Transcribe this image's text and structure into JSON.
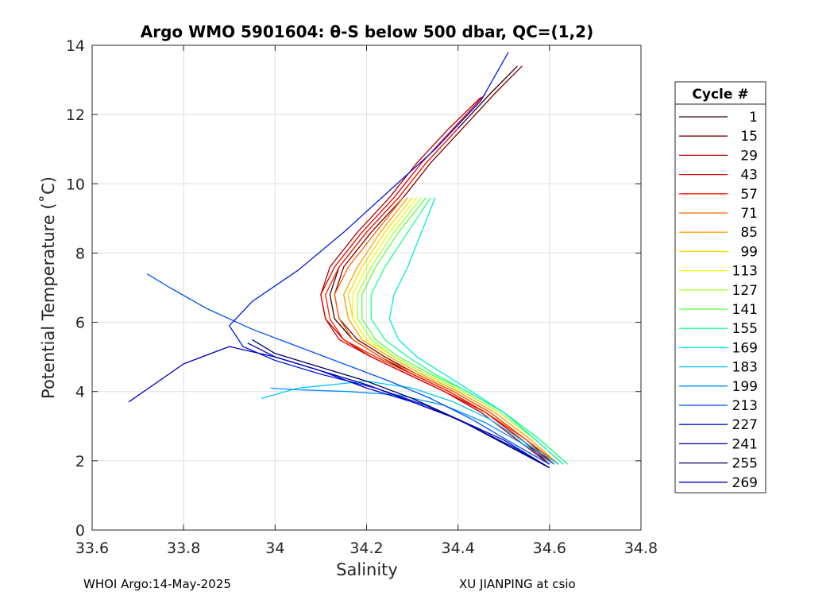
{
  "chart_data": {
    "type": "line",
    "title": "Argo WMO 5901604: θ-S below 500 dbar,  QC=(1,2)",
    "xlabel": "Salinity",
    "ylabel": "Potential Temperature (˚C)",
    "xlim": [
      33.6,
      34.8
    ],
    "ylim": [
      0,
      14
    ],
    "xticks": [
      "33.6",
      "33.8",
      "34",
      "34.2",
      "34.4",
      "34.6",
      "34.8"
    ],
    "yticks": [
      "0",
      "2",
      "4",
      "6",
      "8",
      "10",
      "12",
      "14"
    ],
    "grid": true,
    "legend": {
      "title": "Cycle #",
      "placement": "right, outside plot",
      "entries": [
        {
          "label": "1",
          "color": "#3a0000"
        },
        {
          "label": "15",
          "color": "#7a0000"
        },
        {
          "label": "29",
          "color": "#b00000"
        },
        {
          "label": "43",
          "color": "#e00000"
        },
        {
          "label": "57",
          "color": "#ff2000"
        },
        {
          "label": "71",
          "color": "#ff6400"
        },
        {
          "label": "85",
          "color": "#ffa000"
        },
        {
          "label": "99",
          "color": "#ffd800"
        },
        {
          "label": "113",
          "color": "#e6ff10"
        },
        {
          "label": "127",
          "color": "#a8ff30"
        },
        {
          "label": "141",
          "color": "#58ff40"
        },
        {
          "label": "155",
          "color": "#20ff90"
        },
        {
          "label": "169",
          "color": "#00f0d0"
        },
        {
          "label": "183",
          "color": "#00c8ff"
        },
        {
          "label": "199",
          "color": "#0090ff"
        },
        {
          "label": "213",
          "color": "#0050ff"
        },
        {
          "label": "227",
          "color": "#0018e0"
        },
        {
          "label": "241",
          "color": "#0000a8"
        },
        {
          "label": "255",
          "color": "#000060"
        },
        {
          "label": "269",
          "color": "#0000c8"
        }
      ]
    },
    "series": [
      {
        "name": "1",
        "color": "#3a0000",
        "points": [
          [
            34.6,
            1.9
          ],
          [
            34.54,
            2.6
          ],
          [
            34.46,
            3.4
          ],
          [
            34.38,
            4.0
          ],
          [
            34.3,
            4.5
          ],
          [
            34.23,
            5.0
          ],
          [
            34.17,
            5.5
          ],
          [
            34.13,
            6.1
          ],
          [
            34.12,
            6.8
          ],
          [
            34.14,
            7.6
          ],
          [
            34.2,
            8.6
          ],
          [
            34.27,
            9.6
          ],
          [
            34.33,
            10.6
          ],
          [
            34.4,
            11.6
          ],
          [
            34.47,
            12.6
          ],
          [
            34.53,
            13.4
          ]
        ]
      },
      {
        "name": "15",
        "color": "#7a0000",
        "points": [
          [
            34.61,
            1.9
          ],
          [
            34.55,
            2.6
          ],
          [
            34.47,
            3.4
          ],
          [
            34.39,
            4.0
          ],
          [
            34.31,
            4.5
          ],
          [
            34.24,
            5.0
          ],
          [
            34.18,
            5.5
          ],
          [
            34.14,
            6.1
          ],
          [
            34.13,
            6.8
          ],
          [
            34.15,
            7.6
          ],
          [
            34.21,
            8.6
          ],
          [
            34.28,
            9.6
          ],
          [
            34.34,
            10.6
          ],
          [
            34.41,
            11.6
          ],
          [
            34.48,
            12.6
          ],
          [
            34.54,
            13.4
          ]
        ]
      },
      {
        "name": "29",
        "color": "#b00000",
        "points": [
          [
            34.6,
            1.9
          ],
          [
            34.53,
            2.6
          ],
          [
            34.45,
            3.4
          ],
          [
            34.37,
            4.0
          ],
          [
            34.29,
            4.5
          ],
          [
            34.21,
            5.0
          ],
          [
            34.15,
            5.5
          ],
          [
            34.11,
            6.1
          ],
          [
            34.1,
            6.8
          ],
          [
            34.12,
            7.6
          ],
          [
            34.18,
            8.6
          ],
          [
            34.25,
            9.6
          ],
          [
            34.31,
            10.6
          ],
          [
            34.38,
            11.6
          ],
          [
            34.45,
            12.5
          ]
        ]
      },
      {
        "name": "43",
        "color": "#e00000",
        "points": [
          [
            34.61,
            1.9
          ],
          [
            34.54,
            2.6
          ],
          [
            34.46,
            3.4
          ],
          [
            34.37,
            4.0
          ],
          [
            34.29,
            4.5
          ],
          [
            34.21,
            5.0
          ],
          [
            34.14,
            5.5
          ],
          [
            34.11,
            6.1
          ],
          [
            34.1,
            6.8
          ],
          [
            34.13,
            7.6
          ],
          [
            34.19,
            8.6
          ],
          [
            34.26,
            9.6
          ],
          [
            34.32,
            10.6
          ],
          [
            34.39,
            11.6
          ],
          [
            34.46,
            12.6
          ]
        ]
      },
      {
        "name": "57",
        "color": "#ff2000",
        "points": [
          [
            34.62,
            1.9
          ],
          [
            34.55,
            2.6
          ],
          [
            34.46,
            3.4
          ],
          [
            34.38,
            4.0
          ],
          [
            34.3,
            4.5
          ],
          [
            34.22,
            5.0
          ],
          [
            34.15,
            5.5
          ],
          [
            34.12,
            6.1
          ],
          [
            34.11,
            6.8
          ],
          [
            34.14,
            7.6
          ],
          [
            34.2,
            8.6
          ],
          [
            34.27,
            9.6
          ],
          [
            34.33,
            10.6
          ],
          [
            34.4,
            11.6
          ]
        ]
      },
      {
        "name": "71",
        "color": "#ff6400",
        "points": [
          [
            34.62,
            1.9
          ],
          [
            34.55,
            2.6
          ],
          [
            34.47,
            3.4
          ],
          [
            34.39,
            4.0
          ],
          [
            34.31,
            4.5
          ],
          [
            34.23,
            5.0
          ],
          [
            34.17,
            5.5
          ],
          [
            34.14,
            6.1
          ],
          [
            34.13,
            6.8
          ],
          [
            34.16,
            7.6
          ],
          [
            34.22,
            8.6
          ],
          [
            34.28,
            9.6
          ]
        ]
      },
      {
        "name": "85",
        "color": "#ffa000",
        "points": [
          [
            34.62,
            1.9
          ],
          [
            34.56,
            2.6
          ],
          [
            34.48,
            3.4
          ],
          [
            34.4,
            4.0
          ],
          [
            34.32,
            4.5
          ],
          [
            34.25,
            5.0
          ],
          [
            34.19,
            5.5
          ],
          [
            34.16,
            6.1
          ],
          [
            34.15,
            6.8
          ],
          [
            34.18,
            7.6
          ],
          [
            34.23,
            8.6
          ],
          [
            34.29,
            9.6
          ]
        ]
      },
      {
        "name": "99",
        "color": "#ffd800",
        "points": [
          [
            34.63,
            1.9
          ],
          [
            34.57,
            2.6
          ],
          [
            34.49,
            3.4
          ],
          [
            34.41,
            4.0
          ],
          [
            34.33,
            4.5
          ],
          [
            34.26,
            5.0
          ],
          [
            34.2,
            5.5
          ],
          [
            34.17,
            6.1
          ],
          [
            34.16,
            6.8
          ],
          [
            34.19,
            7.6
          ],
          [
            34.24,
            8.6
          ],
          [
            34.3,
            9.6
          ]
        ]
      },
      {
        "name": "113",
        "color": "#e6ff10",
        "points": [
          [
            34.63,
            1.9
          ],
          [
            34.57,
            2.6
          ],
          [
            34.49,
            3.4
          ],
          [
            34.41,
            4.0
          ],
          [
            34.33,
            4.5
          ],
          [
            34.26,
            5.0
          ],
          [
            34.2,
            5.5
          ],
          [
            34.17,
            6.1
          ],
          [
            34.17,
            6.8
          ],
          [
            34.2,
            7.6
          ],
          [
            34.25,
            8.6
          ],
          [
            34.31,
            9.6
          ]
        ]
      },
      {
        "name": "127",
        "color": "#a8ff30",
        "points": [
          [
            34.63,
            1.9
          ],
          [
            34.57,
            2.6
          ],
          [
            34.49,
            3.4
          ],
          [
            34.41,
            4.0
          ],
          [
            34.33,
            4.5
          ],
          [
            34.26,
            5.0
          ],
          [
            34.21,
            5.5
          ],
          [
            34.18,
            6.1
          ],
          [
            34.18,
            6.8
          ],
          [
            34.21,
            7.6
          ],
          [
            34.26,
            8.6
          ],
          [
            34.32,
            9.6
          ]
        ]
      },
      {
        "name": "141",
        "color": "#58ff40",
        "points": [
          [
            34.64,
            1.9
          ],
          [
            34.58,
            2.6
          ],
          [
            34.5,
            3.4
          ],
          [
            34.42,
            4.0
          ],
          [
            34.34,
            4.5
          ],
          [
            34.27,
            5.0
          ],
          [
            34.22,
            5.5
          ],
          [
            34.19,
            6.1
          ],
          [
            34.19,
            6.8
          ],
          [
            34.22,
            7.6
          ],
          [
            34.27,
            8.6
          ],
          [
            34.33,
            9.6
          ]
        ]
      },
      {
        "name": "155",
        "color": "#20ff90",
        "points": [
          [
            34.64,
            1.9
          ],
          [
            34.58,
            2.6
          ],
          [
            34.5,
            3.4
          ],
          [
            34.42,
            4.0
          ],
          [
            34.35,
            4.5
          ],
          [
            34.29,
            5.0
          ],
          [
            34.24,
            5.5
          ],
          [
            34.21,
            6.1
          ],
          [
            34.21,
            6.8
          ],
          [
            34.24,
            7.6
          ],
          [
            34.29,
            8.6
          ],
          [
            34.34,
            9.6
          ]
        ]
      },
      {
        "name": "169",
        "color": "#00f0d0",
        "points": [
          [
            34.63,
            1.9
          ],
          [
            34.57,
            2.6
          ],
          [
            34.5,
            3.4
          ],
          [
            34.43,
            4.0
          ],
          [
            34.37,
            4.5
          ],
          [
            34.31,
            5.0
          ],
          [
            34.27,
            5.5
          ],
          [
            34.25,
            6.1
          ],
          [
            34.26,
            6.8
          ],
          [
            34.29,
            7.6
          ],
          [
            34.32,
            8.6
          ],
          [
            34.35,
            9.6
          ]
        ]
      },
      {
        "name": "183",
        "color": "#00c8ff",
        "points": [
          [
            34.62,
            1.9
          ],
          [
            34.55,
            2.5
          ],
          [
            34.47,
            3.2
          ],
          [
            34.39,
            3.7
          ],
          [
            34.3,
            4.1
          ],
          [
            34.2,
            4.3
          ],
          [
            34.05,
            4.1
          ],
          [
            33.97,
            3.8
          ]
        ]
      },
      {
        "name": "199",
        "color": "#0090ff",
        "points": [
          [
            34.61,
            1.9
          ],
          [
            34.54,
            2.5
          ],
          [
            34.46,
            3.1
          ],
          [
            34.37,
            3.6
          ],
          [
            34.27,
            3.9
          ],
          [
            34.16,
            4.0
          ],
          [
            34.05,
            4.05
          ],
          [
            33.99,
            4.1
          ]
        ]
      },
      {
        "name": "213",
        "color": "#0050ff",
        "points": [
          [
            34.6,
            1.9
          ],
          [
            34.52,
            2.5
          ],
          [
            34.43,
            3.2
          ],
          [
            34.34,
            3.8
          ],
          [
            34.25,
            4.3
          ],
          [
            34.15,
            4.8
          ],
          [
            34.05,
            5.3
          ],
          [
            33.95,
            5.8
          ],
          [
            33.85,
            6.4
          ],
          [
            33.77,
            7.0
          ],
          [
            33.72,
            7.4
          ]
        ]
      },
      {
        "name": "227",
        "color": "#0018e0",
        "points": [
          [
            34.6,
            1.8
          ],
          [
            34.52,
            2.4
          ],
          [
            34.43,
            3.0
          ],
          [
            34.33,
            3.6
          ],
          [
            34.22,
            4.1
          ],
          [
            34.1,
            4.5
          ],
          [
            34.0,
            4.9
          ],
          [
            33.93,
            5.3
          ],
          [
            33.9,
            5.9
          ],
          [
            33.95,
            6.6
          ],
          [
            34.05,
            7.5
          ],
          [
            34.15,
            8.6
          ],
          [
            34.25,
            9.8
          ],
          [
            34.35,
            11.0
          ],
          [
            34.45,
            12.4
          ],
          [
            34.51,
            13.8
          ]
        ]
      },
      {
        "name": "241",
        "color": "#0000a8",
        "points": [
          [
            34.6,
            1.8
          ],
          [
            34.5,
            2.5
          ],
          [
            34.4,
            3.2
          ],
          [
            34.3,
            3.7
          ],
          [
            34.2,
            4.2
          ],
          [
            34.1,
            4.6
          ],
          [
            34.0,
            5.0
          ],
          [
            33.94,
            5.4
          ]
        ]
      },
      {
        "name": "255",
        "color": "#000060",
        "points": [
          [
            34.6,
            1.8
          ],
          [
            34.5,
            2.5
          ],
          [
            34.4,
            3.2
          ],
          [
            34.3,
            3.8
          ],
          [
            34.2,
            4.3
          ],
          [
            34.1,
            4.7
          ],
          [
            34.0,
            5.1
          ],
          [
            33.95,
            5.5
          ]
        ]
      },
      {
        "name": "269",
        "color": "#0000c8",
        "points": [
          [
            34.6,
            1.8
          ],
          [
            34.5,
            2.6
          ],
          [
            34.4,
            3.2
          ],
          [
            34.3,
            3.7
          ],
          [
            34.2,
            4.1
          ],
          [
            34.1,
            4.6
          ],
          [
            34.0,
            5.0
          ],
          [
            33.9,
            5.3
          ],
          [
            33.8,
            4.8
          ],
          [
            33.68,
            3.7
          ]
        ]
      }
    ]
  },
  "footer": {
    "left": "WHOI Argo:14-May-2025",
    "right": "XU JIANPING at csio"
  }
}
